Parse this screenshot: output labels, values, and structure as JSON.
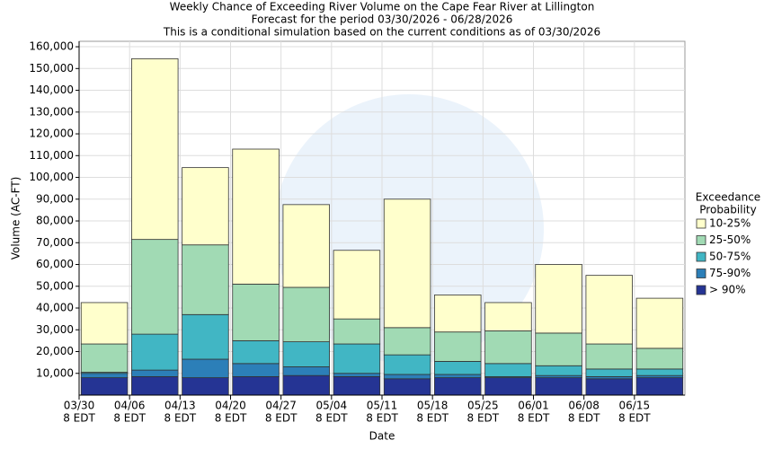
{
  "chart_data": {
    "type": "stacked_bar",
    "title": "Weekly Chance of Exceeding River Volume on the Cape Fear River at Lillington",
    "subtitle": "Forecast for the period 03/30/2026 - 06/28/2026",
    "subtitle2": "This is a conditional simulation based on the current conditions as of 03/30/2026",
    "x_label": "Date",
    "y_label": "Volume (AC-FT)",
    "legend_title": [
      "Exceedance",
      "Probability"
    ],
    "legend_position": "right",
    "grid": true,
    "categories": [
      "03/30",
      "04/06",
      "04/13",
      "04/20",
      "04/27",
      "05/04",
      "05/11",
      "05/18",
      "05/25",
      "06/01",
      "06/08",
      "06/15"
    ],
    "category_sublabels": [
      "8 EDT",
      "8 EDT",
      "8 EDT",
      "8 EDT",
      "8 EDT",
      "8 EDT",
      "8 EDT",
      "8 EDT",
      "8 EDT",
      "8 EDT",
      "8 EDT",
      "8 EDT"
    ],
    "series": [
      {
        "name": "> 90%",
        "color": "#253494",
        "values": [
          8000,
          8500,
          8000,
          8500,
          9000,
          8500,
          7500,
          8000,
          8000,
          8000,
          7500,
          8000
        ]
      },
      {
        "name": "75-90%",
        "color": "#2c7fb8",
        "values": [
          2000,
          3000,
          8500,
          6000,
          4000,
          1500,
          2000,
          1500,
          500,
          1000,
          1000,
          1000
        ]
      },
      {
        "name": "50-75%",
        "color": "#41b6c4",
        "values": [
          500,
          16500,
          20500,
          10500,
          11500,
          13500,
          9000,
          6000,
          6000,
          4500,
          3500,
          3000
        ]
      },
      {
        "name": "25-50%",
        "color": "#a1dab4",
        "values": [
          13000,
          43500,
          32000,
          26000,
          25000,
          11500,
          12500,
          13500,
          15000,
          15000,
          11500,
          9500
        ]
      },
      {
        "name": "10-25%",
        "color": "#ffffcc",
        "values": [
          19000,
          83000,
          35500,
          62000,
          38000,
          31500,
          59000,
          17000,
          13000,
          31500,
          31500,
          23000
        ]
      }
    ],
    "ylim": [
      0,
      162500
    ],
    "yticks": [
      {
        "value": 10000,
        "label": "10,000"
      },
      {
        "value": 20000,
        "label": "20,000"
      },
      {
        "value": 30000,
        "label": "30,000"
      },
      {
        "value": 40000,
        "label": "40,000"
      },
      {
        "value": 50000,
        "label": "50,000"
      },
      {
        "value": 60000,
        "label": "60,000"
      },
      {
        "value": 70000,
        "label": "70,000"
      },
      {
        "value": 80000,
        "label": "80,000"
      },
      {
        "value": 90000,
        "label": "90,000"
      },
      {
        "value": 100000,
        "label": "100,000"
      },
      {
        "value": 110000,
        "label": "110,000"
      },
      {
        "value": 120000,
        "label": "120,000"
      },
      {
        "value": 130000,
        "label": "130,000"
      },
      {
        "value": 140000,
        "label": "140,000"
      },
      {
        "value": 150000,
        "label": "150,000"
      },
      {
        "value": 160000,
        "label": "160,000"
      }
    ]
  }
}
